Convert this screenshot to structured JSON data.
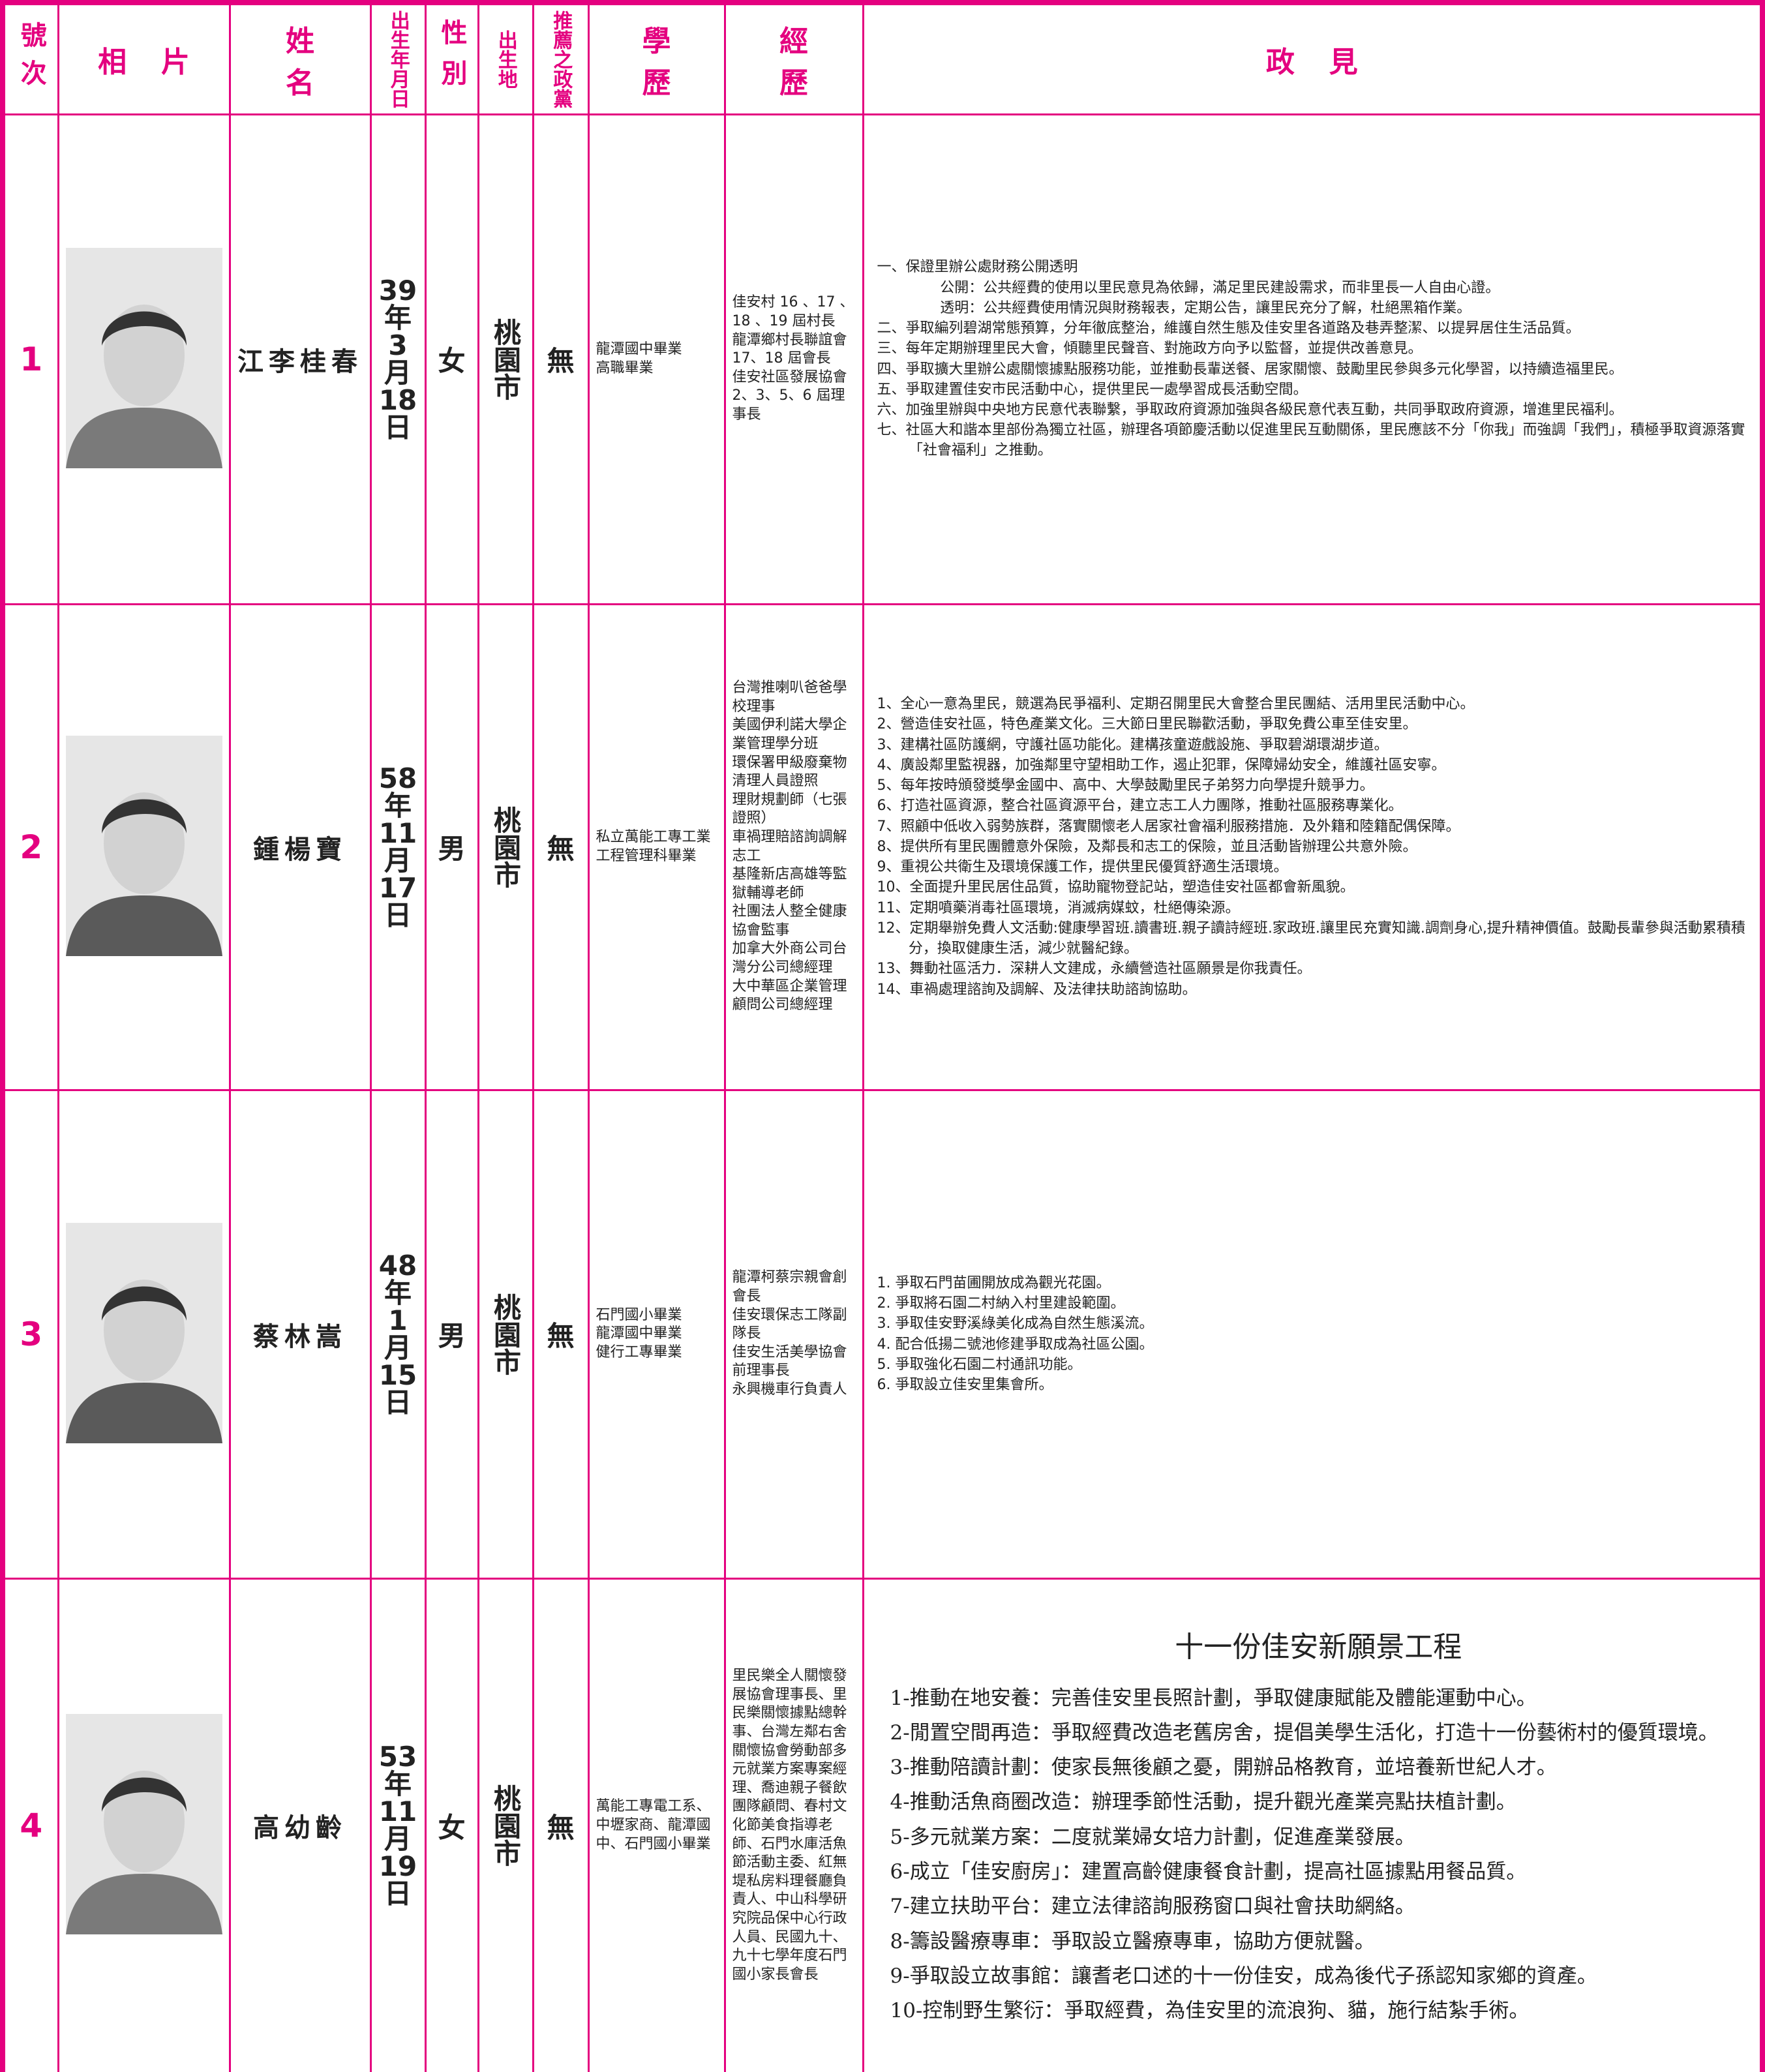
{
  "header": [
    "號次",
    "相片",
    "姓名",
    "出生年月日",
    "性別",
    "出生地",
    "推薦之政黨",
    "學歷",
    "經歷",
    "政見"
  ],
  "candidates": [
    {
      "number": "1",
      "name": "江李桂春",
      "birth": "39年3月18日",
      "gender": "女",
      "birthplace": "桃園市",
      "party": "無",
      "education": [
        "龍潭國中畢業",
        "高職畢業"
      ],
      "experience": [
        "佳安村 16 、17 、18 、19 屆村長",
        "龍潭鄉村長聯誼會 17、18 屆會長",
        "佳安社區發展協會 2、3、5、6 屆理事長"
      ],
      "platform": [
        {
          "text": "一、保證里辦公處財務公開透明",
          "details": [
            "公開：公共經費的使用以里民意見為依歸，滿足里民建設需求，而非里長一人自由心證。",
            "透明：公共經費使用情況與財務報表，定期公告，讓里民充分了解，杜絕黑箱作業。"
          ]
        },
        "二、爭取編列碧湖常態預算，分年徹底整治，維護自然生態及佳安里各道路及巷弄整潔、以提昇居住生活品質。",
        "三、每年定期辦理里民大會，傾聽里民聲音、對施政方向予以監督，並提供改善意見。",
        "四、爭取擴大里辦公處關懷據點服務功能，並推動長輩送餐、居家關懷、鼓勵里民參與多元化學習，以持續造福里民。",
        "五、爭取建置佳安市民活動中心，提供里民一處學習成長活動空間。",
        "六、加強里辦與中央地方民意代表聯繫，爭取政府資源加強與各級民意代表互動，共同爭取政府資源，增進里民福利。",
        "七、社區大和諧本里部份為獨立社區，辦理各項節慶活動以促進里民互動關係，里民應該不分「你我」而強調「我們」，積極爭取資源落實「社會福利」之推動。"
      ]
    },
    {
      "number": "2",
      "name": "鍾楊寶",
      "birth": "58年11月17日",
      "gender": "男",
      "birthplace": "桃園市",
      "party": "無",
      "education": [
        "私立萬能工專工業工程管理科畢業"
      ],
      "experience": [
        "台灣推喇叭爸爸學校理事",
        "美國伊利諾大學企業管理學分班",
        "環保署甲級廢棄物清理人員證照",
        "理財規劃師（七張證照）",
        "車禍理賠諮詢調解志工",
        "基隆新店高雄等監獄輔導老師",
        "社團法人整全健康協會監事",
        "加拿大外商公司台灣分公司總經理",
        "大中華區企業管理顧問公司總經理"
      ],
      "platform": [
        "1、全心一意為里民，競選為民爭福利、定期召開里民大會整合里民團結、活用里民活動中心。",
        "2、營造佳安社區，特色產業文化。三大節日里民聯歡活動，爭取免費公車至佳安里。",
        "3、建構社區防護網，守護社區功能化。建構孩童遊戲設施、爭取碧湖環湖步道。",
        "4、廣設鄰里監視器，加強鄰里守望相助工作，遏止犯罪，保障婦幼安全，維護社區安寧。",
        "5、每年按時頒發獎學金國中、高中、大學鼓勵里民子弟努力向學提升競爭力。",
        "6、打造社區資源，整合社區資源平台，建立志工人力團隊，推動社區服務專業化。",
        "7、照顧中低收入弱勢族群，落實關懷老人居家社會福利服務措施．及外籍和陸籍配偶保障。",
        "8、提供所有里民團體意外保險，及鄰長和志工的保險，並且活動皆辦理公共意外險。",
        "9、重視公共衛生及環境保護工作，提供里民優質舒適生活環境。",
        "10、全面提升里民居住品質，協助寵物登記站，塑造佳安社區都會新風貌。",
        "11、定期噴藥消毒社區環境，消滅病媒蚊，杜絕傳染源。",
        "12、定期舉辦免費人文活動:健康學習班.讀書班.親子讀詩經班.家政班.讓里民充實知識.調劑身心,提升精神價值。鼓勵長輩參與活動累積積分，換取健康生活，減少就醫紀錄。",
        "13、舞動社區活力．深耕人文建成，永續營造社區願景是你我責任。",
        "14、車禍處理諮詢及調解、及法律扶助諮詢協助。"
      ]
    },
    {
      "number": "3",
      "name": "蔡林嵩",
      "birth": "48年1月15日",
      "gender": "男",
      "birthplace": "桃園市",
      "party": "無",
      "education": [
        "石門國小畢業",
        "龍潭國中畢業",
        "健行工專畢業"
      ],
      "experience": [
        "龍潭柯蔡宗親會創會長",
        "佳安環保志工隊副隊長",
        "佳安生活美學協會前理事長",
        "永興機車行負責人"
      ],
      "platform": [
        "1. 爭取石門苗圃開放成為觀光花園。",
        "2. 爭取將石園二村納入村里建設範圍。",
        "3. 爭取佳安野溪綠美化成為自然生態溪流。",
        "4. 配合低揚二號池修建爭取成為社區公園。",
        "5. 爭取強化石園二村通訊功能。",
        "6. 爭取設立佳安里集會所。"
      ]
    },
    {
      "number": "4",
      "name": "高幼齡",
      "birth": "53年11月19日",
      "gender": "女",
      "birthplace": "桃園市",
      "party": "無",
      "education": [
        "萬能工專電工系、中壢家商、龍潭國中、石門國小畢業"
      ],
      "experience": [
        "里民樂全人關懷發展協會理事長、里民樂關懷據點總幹事、台灣左鄰右舍關懷協會勞動部多元就業方案專案經理、喬迪親子餐飲團隊顧問、春村文化節美食指導老師、石門水庫活魚節活動主委、紅無堤私房料理餐廳負責人、中山科學研究院品保中心行政人員、民國九十、九十七學年度石門國小家長會長"
      ],
      "platform_title": "十一份佳安新願景工程",
      "platform": [
        "1-推動在地安養：完善佳安里長照計劃，爭取健康賦能及體能運動中心。",
        "2-閒置空間再造：爭取經費改造老舊房舍，提倡美學生活化，打造十一份藝術村的優質環境。",
        "3-推動陪讀計劃：使家長無後顧之憂，開辦品格教育，並培養新世紀人才。",
        "4-推動活魚商圈改造：辦理季節性活動，提升觀光產業亮點扶植計劃。",
        "5-多元就業方案：二度就業婦女培力計劃，促進產業發展。",
        "6-成立「佳安廚房」：建置高齡健康餐食計劃，提高社區據點用餐品質。",
        "7-建立扶助平台：建立法律諮詢服務窗口與社會扶助網絡。",
        "8-籌設醫療專車：爭取設立醫療專車，協助方便就醫。",
        "9-爭取設立故事館：讓耆老口述的十一份佳安，成為後代子孫認知家鄉的資產。",
        "10-控制野生繁衍：爭取經費，為佳安里的流浪狗、貓，施行結紮手術。"
      ]
    }
  ]
}
